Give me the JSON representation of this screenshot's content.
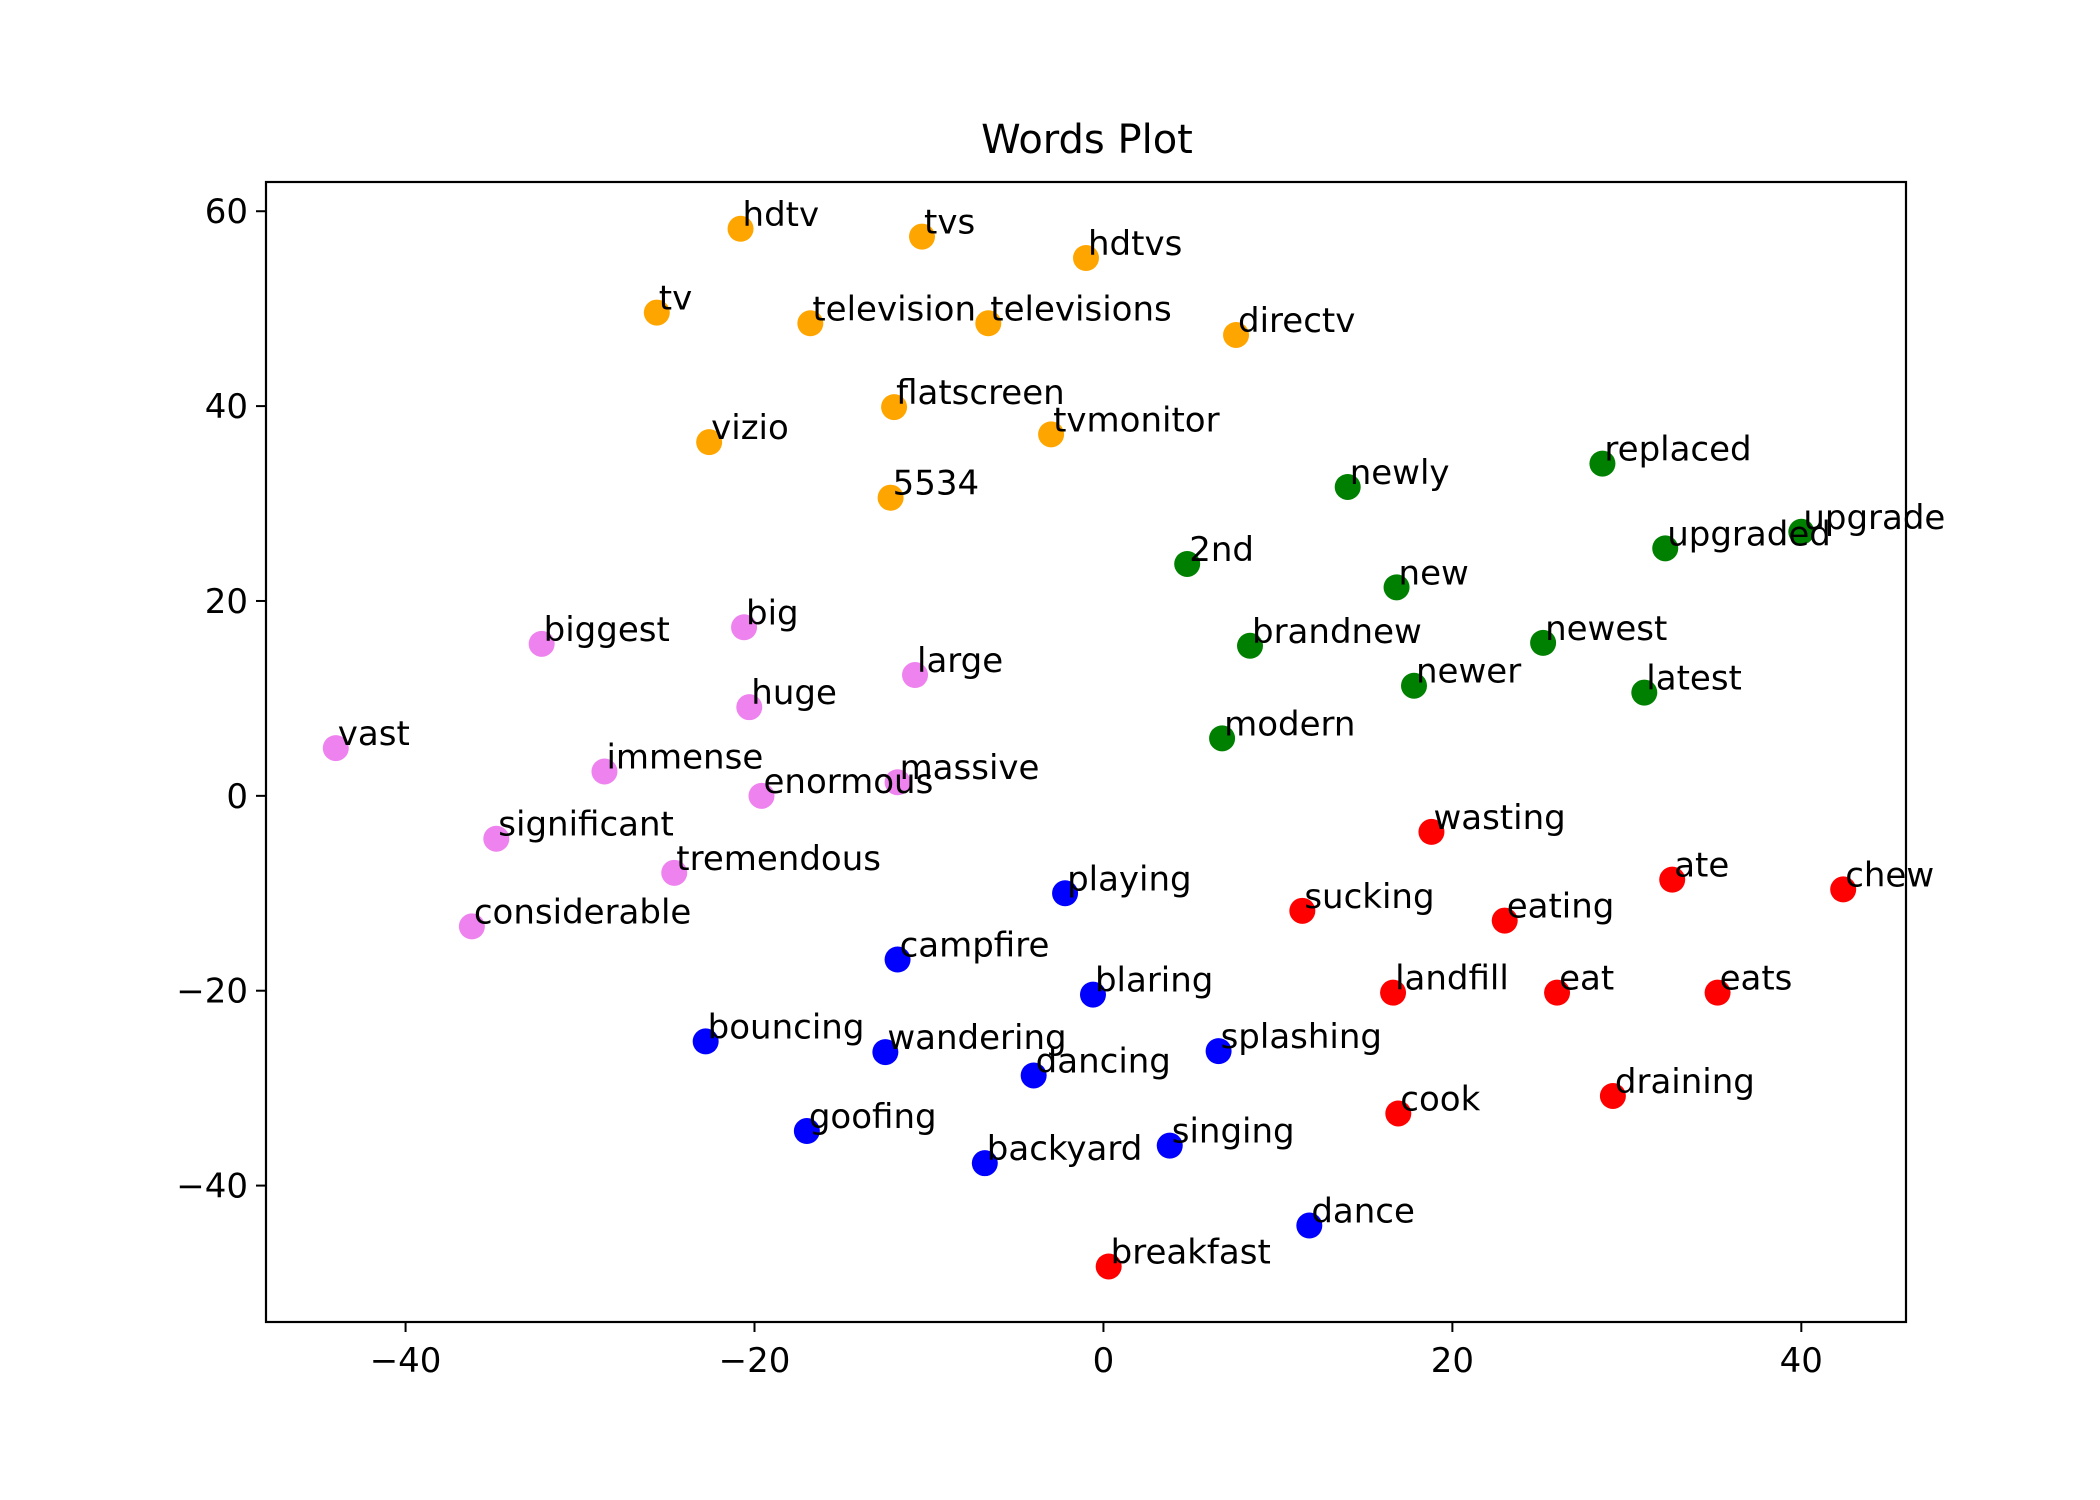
{
  "chart_data": {
    "type": "scatter",
    "title": "Words Plot",
    "xlabel": "",
    "ylabel": "",
    "xlim": [
      -48,
      46
    ],
    "ylim": [
      -54,
      63
    ],
    "xticks": [
      -40,
      -20,
      0,
      20,
      40
    ],
    "yticks": [
      -40,
      -20,
      0,
      20,
      40,
      60
    ],
    "tick_labels_x": [
      "−40",
      "−20",
      "0",
      "20",
      "40"
    ],
    "tick_labels_y": [
      "−40",
      "−20",
      "0",
      "20",
      "40",
      "60"
    ],
    "grid": false,
    "legend": "none",
    "series": [
      {
        "color": "#ffa500",
        "points": [
          {
            "label": "hdtv",
            "x": -20.8,
            "y": 58.2
          },
          {
            "label": "tvs",
            "x": -10.4,
            "y": 57.4
          },
          {
            "label": "hdtvs",
            "x": -1.0,
            "y": 55.2
          },
          {
            "label": "tv",
            "x": -25.6,
            "y": 49.6
          },
          {
            "label": "television",
            "x": -16.8,
            "y": 48.5
          },
          {
            "label": "televisions",
            "x": -6.6,
            "y": 48.5
          },
          {
            "label": "directv",
            "x": 7.6,
            "y": 47.3
          },
          {
            "label": "flatscreen",
            "x": -12.0,
            "y": 39.9
          },
          {
            "label": "tvmonitor",
            "x": -3.0,
            "y": 37.1
          },
          {
            "label": "vizio",
            "x": -22.6,
            "y": 36.3
          },
          {
            "label": "5534",
            "x": -12.2,
            "y": 30.6
          }
        ]
      },
      {
        "color": "#008000",
        "points": [
          {
            "label": "replaced",
            "x": 28.6,
            "y": 34.1
          },
          {
            "label": "newly",
            "x": 14.0,
            "y": 31.7
          },
          {
            "label": "upgrade",
            "x": 40.0,
            "y": 27.1
          },
          {
            "label": "upgraded",
            "x": 32.2,
            "y": 25.4
          },
          {
            "label": "2nd",
            "x": 4.8,
            "y": 23.8
          },
          {
            "label": "new",
            "x": 16.8,
            "y": 21.4
          },
          {
            "label": "newest",
            "x": 25.2,
            "y": 15.7
          },
          {
            "label": "brandnew",
            "x": 8.4,
            "y": 15.4
          },
          {
            "label": "newer",
            "x": 17.8,
            "y": 11.3
          },
          {
            "label": "latest",
            "x": 31.0,
            "y": 10.6
          },
          {
            "label": "modern",
            "x": 6.8,
            "y": 5.9
          }
        ]
      },
      {
        "color": "#ee82ee",
        "points": [
          {
            "label": "big",
            "x": -20.6,
            "y": 17.3
          },
          {
            "label": "biggest",
            "x": -32.2,
            "y": 15.6
          },
          {
            "label": "large",
            "x": -10.8,
            "y": 12.4
          },
          {
            "label": "huge",
            "x": -20.3,
            "y": 9.1
          },
          {
            "label": "vast",
            "x": -44.0,
            "y": 4.9
          },
          {
            "label": "immense",
            "x": -28.6,
            "y": 2.5
          },
          {
            "label": "massive",
            "x": -11.8,
            "y": 1.4
          },
          {
            "label": "enormous",
            "x": -19.6,
            "y": 0.0
          },
          {
            "label": "significant",
            "x": -34.8,
            "y": -4.4
          },
          {
            "label": "tremendous",
            "x": -24.6,
            "y": -7.9
          },
          {
            "label": "considerable",
            "x": -36.2,
            "y": -13.4
          }
        ]
      },
      {
        "color": "#0000ff",
        "points": [
          {
            "label": "playing",
            "x": -2.2,
            "y": -10.0
          },
          {
            "label": "campfire",
            "x": -11.8,
            "y": -16.8
          },
          {
            "label": "blaring",
            "x": -0.6,
            "y": -20.4
          },
          {
            "label": "bouncing",
            "x": -22.8,
            "y": -25.2
          },
          {
            "label": "splashing",
            "x": 6.6,
            "y": -26.2
          },
          {
            "label": "wandering",
            "x": -12.5,
            "y": -26.3
          },
          {
            "label": "dancing",
            "x": -4.0,
            "y": -28.7
          },
          {
            "label": "goofing",
            "x": -17.0,
            "y": -34.4
          },
          {
            "label": "singing",
            "x": 3.8,
            "y": -35.9
          },
          {
            "label": "backyard",
            "x": -6.8,
            "y": -37.7
          },
          {
            "label": "dance",
            "x": 11.8,
            "y": -44.1
          }
        ]
      },
      {
        "color": "#ff0000",
        "points": [
          {
            "label": "wasting",
            "x": 18.8,
            "y": -3.7
          },
          {
            "label": "ate",
            "x": 32.6,
            "y": -8.6
          },
          {
            "label": "chew",
            "x": 42.4,
            "y": -9.6
          },
          {
            "label": "sucking",
            "x": 11.4,
            "y": -11.8
          },
          {
            "label": "eating",
            "x": 23.0,
            "y": -12.8
          },
          {
            "label": "landfill",
            "x": 16.6,
            "y": -20.2
          },
          {
            "label": "eat",
            "x": 26.0,
            "y": -20.2
          },
          {
            "label": "eats",
            "x": 35.2,
            "y": -20.2
          },
          {
            "label": "draining",
            "x": 29.2,
            "y": -30.8
          },
          {
            "label": "cook",
            "x": 16.9,
            "y": -32.6
          },
          {
            "label": "breakfast",
            "x": 0.3,
            "y": -48.3
          }
        ]
      }
    ]
  }
}
